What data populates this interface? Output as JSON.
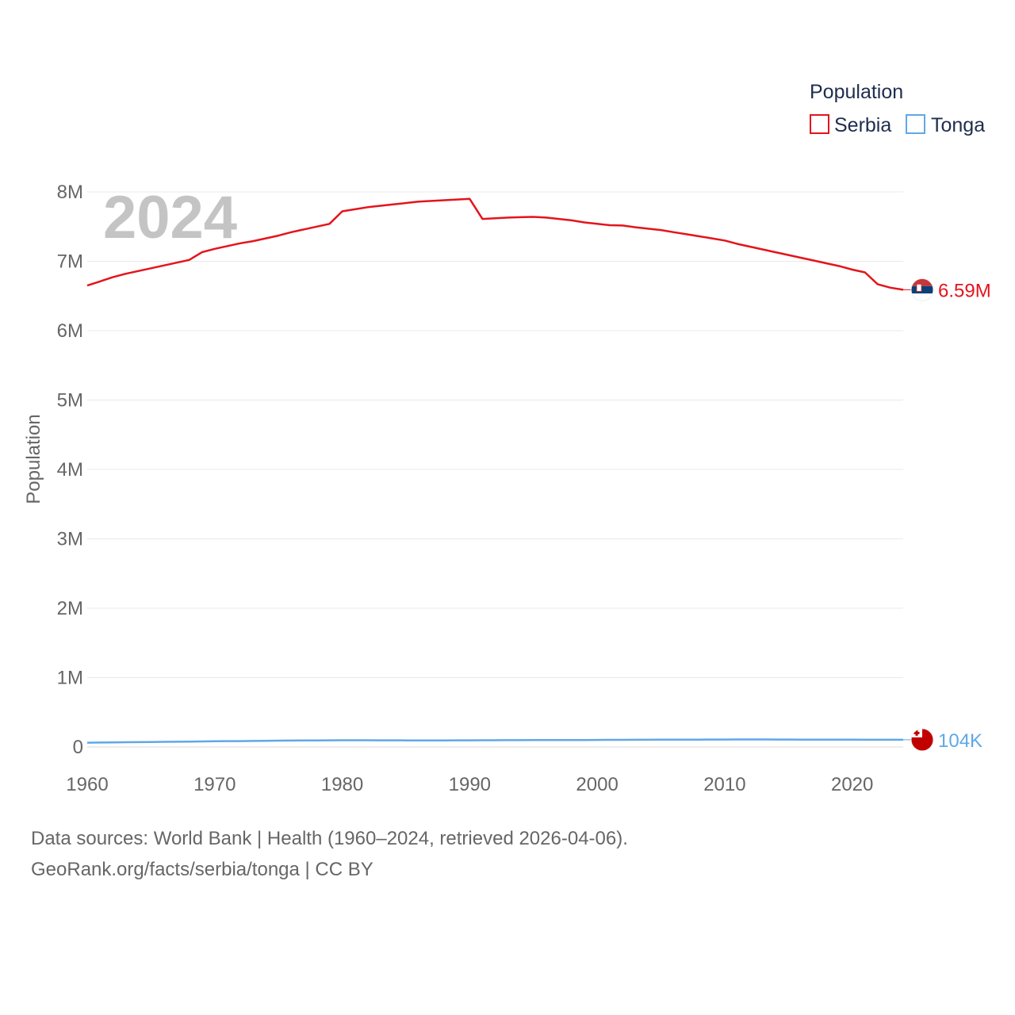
{
  "chart_data": {
    "type": "line",
    "title": "",
    "current_year": "2024",
    "ylabel": "Population",
    "xlabel": "",
    "xlim": [
      1960,
      2024
    ],
    "ylim": [
      0,
      8000000
    ],
    "x_ticks": [
      1960,
      1970,
      1980,
      1990,
      2000,
      2010,
      2020
    ],
    "x_tick_labels": [
      "1960",
      "1970",
      "1980",
      "1990",
      "2000",
      "2010",
      "2020"
    ],
    "y_ticks": [
      0,
      1000000,
      2000000,
      3000000,
      4000000,
      5000000,
      6000000,
      7000000,
      8000000
    ],
    "y_tick_labels": [
      "0",
      "1M",
      "2M",
      "3M",
      "4M",
      "5M",
      "6M",
      "7M",
      "8M"
    ],
    "legend": {
      "title": "Population",
      "position": "top-right",
      "entries": [
        "Serbia",
        "Tonga"
      ]
    },
    "x": [
      1960,
      1961,
      1962,
      1963,
      1964,
      1965,
      1966,
      1967,
      1968,
      1969,
      1970,
      1971,
      1972,
      1973,
      1974,
      1975,
      1976,
      1977,
      1978,
      1979,
      1980,
      1981,
      1982,
      1983,
      1984,
      1985,
      1986,
      1987,
      1988,
      1989,
      1990,
      1991,
      1992,
      1993,
      1994,
      1995,
      1996,
      1997,
      1998,
      1999,
      2000,
      2001,
      2002,
      2003,
      2004,
      2005,
      2006,
      2007,
      2008,
      2009,
      2010,
      2011,
      2012,
      2013,
      2014,
      2015,
      2016,
      2017,
      2018,
      2019,
      2020,
      2021,
      2022,
      2023,
      2024
    ],
    "series": [
      {
        "name": "Serbia",
        "color": "#e4141b",
        "end_label": "6.59M",
        "flag": "serbia-flag-icon",
        "values": [
          6650000,
          6710000,
          6770000,
          6820000,
          6860000,
          6900000,
          6940000,
          6980000,
          7020000,
          7130000,
          7180000,
          7220000,
          7260000,
          7290000,
          7330000,
          7370000,
          7420000,
          7460000,
          7500000,
          7540000,
          7720000,
          7750000,
          7780000,
          7800000,
          7820000,
          7840000,
          7860000,
          7870000,
          7880000,
          7890000,
          7900000,
          7610000,
          7620000,
          7630000,
          7635000,
          7640000,
          7630000,
          7610000,
          7590000,
          7560000,
          7540000,
          7520000,
          7515000,
          7490000,
          7470000,
          7450000,
          7420000,
          7390000,
          7360000,
          7330000,
          7300000,
          7250000,
          7210000,
          7170000,
          7130000,
          7090000,
          7050000,
          7010000,
          6970000,
          6930000,
          6880000,
          6840000,
          6670000,
          6620000,
          6590000
        ]
      },
      {
        "name": "Tonga",
        "color": "#5fa8e8",
        "end_label": "104K",
        "flag": "tonga-flag-icon",
        "values": [
          62000,
          64000,
          66000,
          68000,
          70000,
          72000,
          74000,
          76000,
          78000,
          80000,
          82000,
          84000,
          85000,
          87000,
          89000,
          91000,
          93000,
          94000,
          95000,
          96000,
          97000,
          97000,
          97000,
          96000,
          96000,
          95000,
          95000,
          95000,
          95000,
          96000,
          96000,
          97000,
          97000,
          98000,
          98000,
          99000,
          99000,
          100000,
          100000,
          101000,
          102000,
          103000,
          103000,
          104000,
          104000,
          105000,
          105000,
          106000,
          106000,
          107000,
          107000,
          108000,
          108000,
          108000,
          107000,
          107000,
          106000,
          106000,
          105000,
          105000,
          105000,
          104000,
          104000,
          104000,
          104000
        ]
      }
    ]
  },
  "footer": {
    "source": "Data sources: World Bank | Health (1960–2024, retrieved 2026-04-06).",
    "credit": "GeoRank.org/facts/serbia/tonga | CC BY"
  }
}
